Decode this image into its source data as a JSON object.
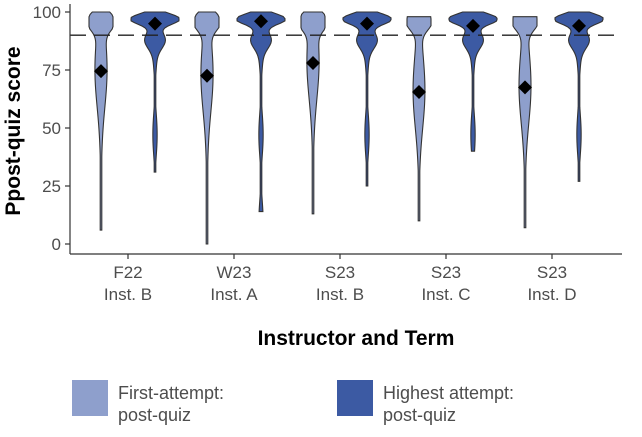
{
  "chart_data": {
    "type": "violin",
    "ylabel": "Ppost-quiz score",
    "xlabel": "Instructor and Term",
    "ylim": [
      0,
      100
    ],
    "yticks": [
      0,
      25,
      50,
      75,
      100
    ],
    "reference_line": 90,
    "categories": [
      {
        "term": "F22",
        "inst": "Inst. B"
      },
      {
        "term": "W23",
        "inst": "Inst. A"
      },
      {
        "term": "S23",
        "inst": "Inst. B"
      },
      {
        "term": "S23",
        "inst": "Inst. C"
      },
      {
        "term": "S23",
        "inst": "Inst. D"
      }
    ],
    "series": [
      {
        "name": "First-attempt: post-quiz",
        "color": "#8e9fcc",
        "means": [
          74.5,
          72.5,
          78,
          65.5,
          67.5
        ],
        "ranges": [
          [
            6,
            100
          ],
          [
            0,
            100
          ],
          [
            13,
            100
          ],
          [
            10,
            98
          ],
          [
            7,
            98
          ]
        ]
      },
      {
        "name": "Highest attempt: post-quiz",
        "color": "#3c5aa3",
        "means": [
          95,
          96,
          95,
          94,
          94
        ],
        "ranges": [
          [
            31,
            100
          ],
          [
            14,
            100
          ],
          [
            25,
            100
          ],
          [
            40,
            100
          ],
          [
            27,
            100
          ]
        ]
      }
    ],
    "legend": {
      "position": "bottom",
      "items": [
        {
          "label": "First-attempt:\npost-quiz",
          "color": "#8e9fcc"
        },
        {
          "label": "Highest attempt:\npost-quiz",
          "color": "#3c5aa3"
        }
      ]
    }
  }
}
